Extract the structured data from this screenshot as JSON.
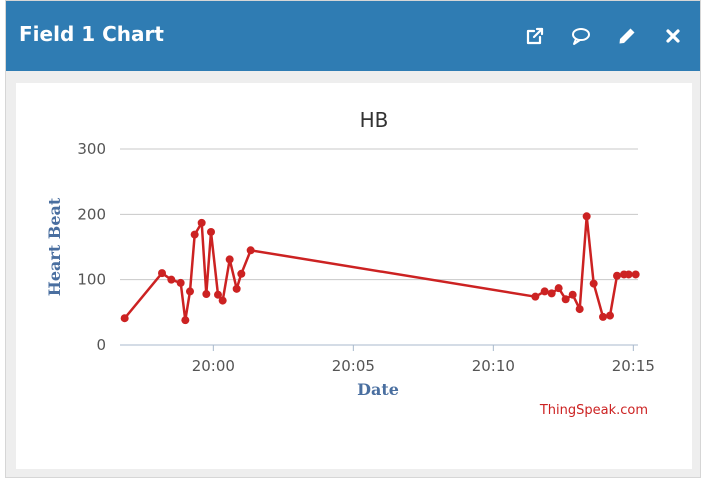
{
  "window": {
    "title": "Field 1 Chart",
    "tools": [
      {
        "icon": "external-link-icon"
      },
      {
        "icon": "comment-icon"
      },
      {
        "icon": "pencil-icon"
      },
      {
        "icon": "close-icon"
      }
    ]
  },
  "brand": "ThingSpeak.com",
  "colors": {
    "header": "#2f7cb3",
    "series": "#cc2222",
    "axis_title": "#4a6fa0",
    "grid": "#c8c8c8"
  },
  "chart_data": {
    "type": "line",
    "title": "HB",
    "xlabel": "Date",
    "ylabel": "Heart Beat",
    "x_unit": "time of day (HH:MM)",
    "xlim": [
      "19:56:40",
      "20:15:10"
    ],
    "ylim": [
      0,
      300
    ],
    "yticks": [
      0,
      100,
      200,
      300
    ],
    "xticks": [
      "20:00",
      "20:05",
      "20:10",
      "20:15"
    ],
    "grid": true,
    "legend": "none",
    "series": [
      {
        "x": [
          "19:56:50",
          "19:58:10",
          "19:58:30",
          "19:58:50",
          "19:59:00",
          "19:59:10",
          "19:59:20",
          "19:59:35",
          "19:59:45",
          "19:59:55",
          "20:00:10",
          "20:00:20",
          "20:00:35",
          "20:00:50",
          "20:01:00",
          "20:01:20",
          "20:11:30",
          "20:11:50",
          "20:12:05",
          "20:12:20",
          "20:12:35",
          "20:12:50",
          "20:13:05",
          "20:13:20",
          "20:13:35",
          "20:13:55",
          "20:14:10",
          "20:14:25",
          "20:14:40",
          "20:14:50",
          "20:15:05"
        ],
        "y": [
          41,
          110,
          100,
          95,
          38,
          82,
          169,
          187,
          78,
          173,
          77,
          68,
          131,
          86,
          109,
          145,
          74,
          82,
          79,
          87,
          70,
          77,
          55,
          197,
          94,
          43,
          45,
          106,
          108,
          108,
          108
        ]
      }
    ]
  }
}
